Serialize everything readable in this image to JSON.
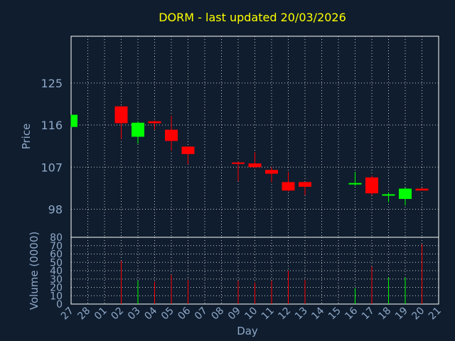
{
  "chart_data": {
    "type": "candlestick",
    "title": "DORM - last updated 20/03/2026",
    "xlabel": "Day",
    "price_panel": {
      "ylabel": "Price",
      "yticks": [
        98,
        107,
        116,
        125
      ],
      "ylim": [
        92,
        135
      ]
    },
    "volume_panel": {
      "ylabel": "Volume (0000)",
      "yticks": [
        0,
        10,
        20,
        30,
        40,
        50,
        60,
        70,
        80
      ],
      "ylim": [
        0,
        80
      ]
    },
    "x_tick_labels": [
      "27",
      "28",
      "01",
      "02",
      "03",
      "04",
      "05",
      "06",
      "07",
      "08",
      "09",
      "10",
      "11",
      "12",
      "13",
      "14",
      "15",
      "16",
      "17",
      "18",
      "19",
      "20",
      "21"
    ],
    "colors": {
      "up": "#00ff00",
      "down": "#ff0000"
    },
    "candles": [
      {
        "day": "27",
        "open": 115.6,
        "high": 118.2,
        "low": 115.6,
        "close": 118.2,
        "volume": 0
      },
      {
        "day": "02",
        "open": 120.0,
        "high": 120.0,
        "low": 113.0,
        "close": 116.4,
        "volume": 52
      },
      {
        "day": "03",
        "open": 113.5,
        "high": 116.8,
        "low": 112.0,
        "close": 116.5,
        "volume": 28
      },
      {
        "day": "04",
        "open": 116.8,
        "high": 117.0,
        "low": 115.0,
        "close": 116.4,
        "volume": 27
      },
      {
        "day": "05",
        "open": 115.0,
        "high": 118.0,
        "low": 110.5,
        "close": 112.6,
        "volume": 35
      },
      {
        "day": "06",
        "open": 111.4,
        "high": 111.4,
        "low": 107.6,
        "close": 109.8,
        "volume": 29
      },
      {
        "day": "09",
        "open": 108.0,
        "high": 108.2,
        "low": 104.0,
        "close": 107.8,
        "volume": 28
      },
      {
        "day": "10",
        "open": 107.8,
        "high": 110.2,
        "low": 106.8,
        "close": 107.0,
        "volume": 26
      },
      {
        "day": "11",
        "open": 106.4,
        "high": 107.0,
        "low": 103.8,
        "close": 105.6,
        "volume": 28
      },
      {
        "day": "12",
        "open": 103.8,
        "high": 106.0,
        "low": 101.8,
        "close": 102.0,
        "volume": 40
      },
      {
        "day": "13",
        "open": 103.8,
        "high": 103.8,
        "low": 101.0,
        "close": 102.8,
        "volume": 29
      },
      {
        "day": "16",
        "open": 103.4,
        "high": 106.0,
        "low": 103.0,
        "close": 103.6,
        "volume": 19
      },
      {
        "day": "17",
        "open": 104.8,
        "high": 105.2,
        "low": 101.0,
        "close": 101.4,
        "volume": 45
      },
      {
        "day": "18",
        "open": 101.0,
        "high": 101.6,
        "low": 99.5,
        "close": 101.2,
        "volume": 32
      },
      {
        "day": "19",
        "open": 100.2,
        "high": 102.6,
        "low": 98.8,
        "close": 102.4,
        "volume": 32
      },
      {
        "day": "20",
        "open": 102.4,
        "high": 102.6,
        "low": 102.0,
        "close": 102.0,
        "volume": 72
      }
    ]
  }
}
